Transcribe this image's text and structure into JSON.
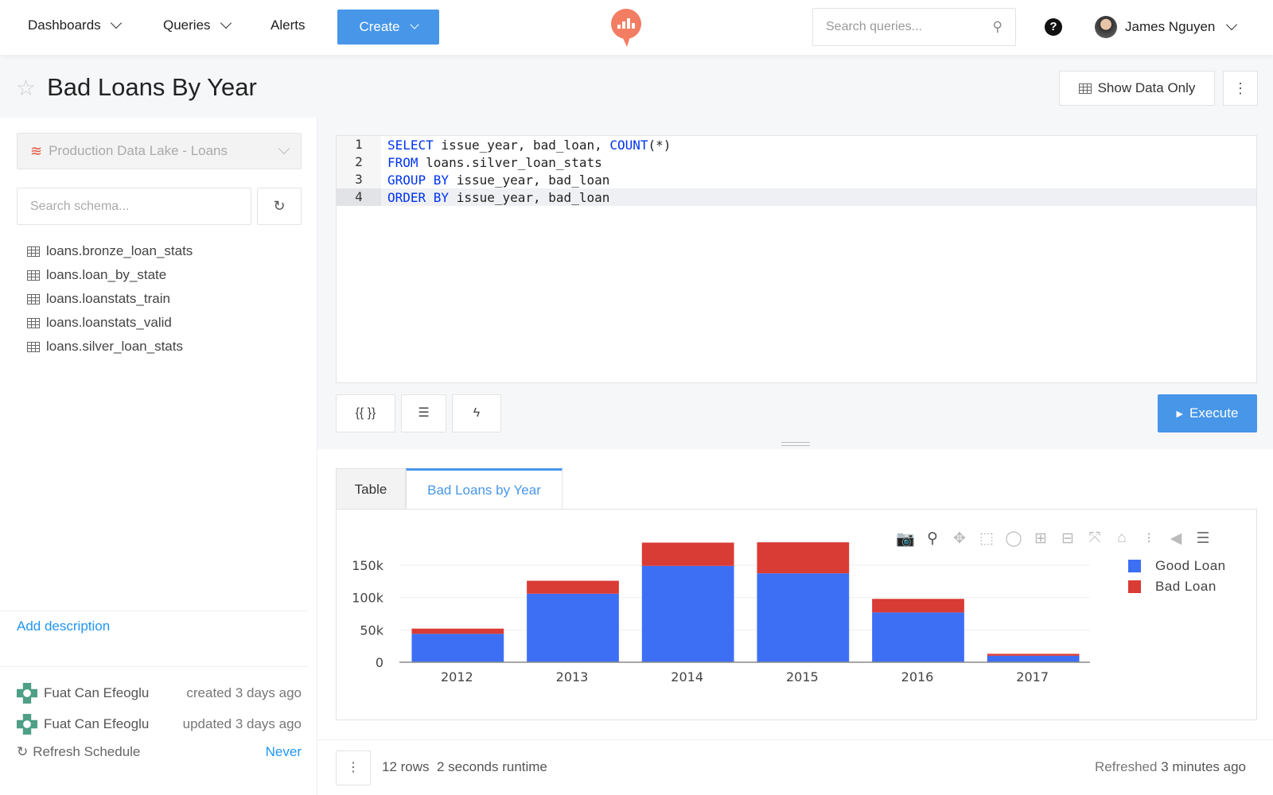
{
  "nav": {
    "dashboards": "Dashboards",
    "queries": "Queries",
    "alerts": "Alerts",
    "create": "Create",
    "search_placeholder": "Search queries...",
    "user": "James Nguyen",
    "help": "?"
  },
  "query": {
    "title": "Bad Loans By Year",
    "show_data_only": "Show Data Only",
    "more": "⋮"
  },
  "sidebar": {
    "datasource": "Production Data Lake - Loans",
    "schema_placeholder": "Search schema...",
    "tables": [
      "loans.bronze_loan_stats",
      "loans.loan_by_state",
      "loans.loanstats_train",
      "loans.loanstats_valid",
      "loans.silver_loan_stats"
    ],
    "add_description": "Add description",
    "created": {
      "user": "Fuat Can Efeoglu",
      "when": "created 3 days ago"
    },
    "updated": {
      "user": "Fuat Can Efeoglu",
      "when": "updated 3 days ago"
    },
    "refresh_label": "Refresh Schedule",
    "refresh_value": "Never"
  },
  "editor": {
    "lines": [
      {
        "n": "1",
        "kw1": "SELECT",
        "t1": " issue_year, bad_loan, ",
        "kw2": "COUNT",
        "t2": "(*)"
      },
      {
        "n": "2",
        "kw1": "FROM",
        "t1": " loans.silver_loan_stats",
        "kw2": "",
        "t2": ""
      },
      {
        "n": "3",
        "kw1": "GROUP BY",
        "t1": " issue_year, bad_loan",
        "kw2": "",
        "t2": ""
      },
      {
        "n": "4",
        "kw1": "ORDER BY",
        "t1": " issue_year, bad_loan",
        "kw2": "",
        "t2": ""
      }
    ],
    "params_btn": "{{ }}",
    "execute": "Execute"
  },
  "results": {
    "tabs": [
      "Table",
      "Bad Loans by Year"
    ],
    "active_tab": "Bad Loans by Year"
  },
  "footer": {
    "rows": "12 rows",
    "runtime": "2 seconds runtime",
    "refreshed_label": "Refreshed",
    "refreshed_value": "3 minutes ago"
  },
  "colors": {
    "accent": "#4796e8",
    "good": "#3d6ff5",
    "bad": "#d93b35"
  },
  "chart_data": {
    "type": "bar",
    "stacked": true,
    "categories": [
      "2012",
      "2013",
      "2014",
      "2015",
      "2016",
      "2017"
    ],
    "series": [
      {
        "name": "Good Loan",
        "values": [
          44000,
          106000,
          149000,
          137500,
          77000,
          10000
        ]
      },
      {
        "name": "Bad Loan",
        "values": [
          8000,
          20000,
          36000,
          48000,
          21000,
          3000
        ]
      }
    ],
    "yticks": [
      "0",
      "50k",
      "100k",
      "150k"
    ],
    "ylim": [
      0,
      190000
    ],
    "grid": true,
    "legend": "top-right"
  }
}
